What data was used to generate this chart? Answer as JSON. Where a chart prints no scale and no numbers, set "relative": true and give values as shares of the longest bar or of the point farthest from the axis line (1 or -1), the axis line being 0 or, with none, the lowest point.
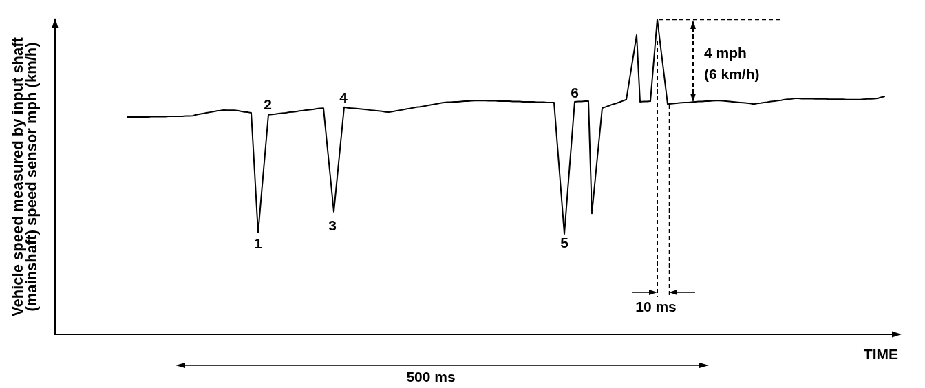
{
  "chart_data": {
    "type": "line",
    "relative": true,
    "color": "#000000",
    "marker": "none",
    "line_style": "solid",
    "xlabel": "TIME",
    "ylabel": "Vehicle speed measured by input shaft\n(mainshaft) speed sensor mph (km/h)",
    "annotations": [
      "1",
      "2",
      "3",
      "4",
      "5",
      "6",
      "4 mph\n(6 km/h)",
      "10 ms",
      "500 ms"
    ],
    "categories": [
      null,
      null,
      null,
      null,
      null,
      null,
      null,
      null,
      null,
      null,
      null,
      null,
      null,
      null,
      null,
      null,
      null,
      null,
      null,
      null,
      null,
      null,
      null,
      null,
      null,
      null,
      null,
      null,
      null,
      null,
      null,
      null,
      null,
      null,
      null,
      null,
      null,
      null,
      null,
      null,
      null,
      null,
      null,
      null,
      null,
      null,
      null,
      null,
      null,
      null,
      null,
      null,
      null,
      null,
      null,
      null,
      null,
      null,
      null,
      null,
      null,
      null,
      null,
      null,
      null,
      null,
      null,
      null,
      null,
      null,
      null,
      null,
      null,
      null,
      null,
      null,
      null,
      null,
      null,
      null,
      null,
      null,
      null,
      null,
      null,
      null,
      null,
      null,
      null,
      null,
      null,
      null,
      null,
      null,
      null,
      null,
      null,
      null,
      null,
      null,
      null,
      null,
      null,
      null,
      null,
      null,
      null,
      null,
      null,
      null,
      null,
      null,
      null,
      null,
      null,
      null,
      null,
      null,
      null,
      null,
      null,
      null,
      null,
      null,
      null,
      null,
      null,
      null,
      null,
      null,
      null,
      null,
      null,
      null,
      null,
      null,
      null,
      null,
      null,
      null,
      null,
      null,
      null,
      null,
      null,
      null,
      null,
      null,
      null,
      null,
      null,
      null,
      null,
      null,
      null,
      null,
      null,
      null,
      null,
      null,
      null,
      null,
      null,
      null,
      null,
      null,
      null,
      null,
      null,
      null,
      null,
      null,
      null,
      null,
      null,
      null,
      null,
      null,
      null,
      null,
      null,
      null,
      null,
      null,
      null,
      null,
      null,
      null,
      null,
      null,
      null,
      null,
      null,
      null,
      null,
      null,
      null,
      null,
      null,
      null,
      null,
      null,
      null,
      null,
      null,
      null,
      null,
      null,
      null,
      null,
      null,
      null,
      null,
      null,
      null,
      null,
      null,
      null,
      null,
      null,
      null,
      null,
      null,
      null,
      null,
      null,
      null,
      null,
      null,
      null,
      null,
      null,
      null,
      null,
      null,
      null,
      null,
      null,
      null,
      null,
      null,
      null,
      null,
      null,
      null,
      null
    ],
    "values": [
      null,
      null,
      null,
      null,
      null,
      null,
      null,
      null,
      null,
      null,
      null,
      null,
      null,
      null,
      null,
      null,
      null,
      null,
      null,
      null,
      null,
      0.69,
      0.69,
      0.69,
      0.69,
      0.69,
      0.69,
      0.69,
      0.691,
      0.691,
      0.691,
      0.691,
      0.691,
      0.692,
      0.692,
      0.692,
      0.692,
      0.692,
      0.693,
      0.693,
      0.694,
      0.697,
      0.699,
      0.701,
      0.703,
      0.705,
      0.707,
      0.709,
      0.71,
      0.712,
      0.711,
      0.711,
      0.711,
      0.71,
      0.708,
      0.706,
      0.705,
      0.703,
      0.513,
      0.323,
      0.448,
      0.572,
      0.697,
      0.698,
      0.699,
      0.701,
      0.702,
      0.703,
      0.705,
      0.706,
      0.707,
      0.709,
      0.71,
      0.712,
      0.713,
      0.714,
      0.716,
      0.717,
      0.718,
      0.608,
      0.499,
      0.389,
      0.499,
      0.61,
      0.721,
      0.719,
      0.718,
      0.717,
      0.716,
      0.715,
      0.714,
      0.713,
      0.711,
      0.71,
      0.709,
      0.708,
      0.706,
      0.705,
      0.707,
      0.709,
      0.711,
      0.713,
      0.715,
      0.717,
      0.719,
      0.721,
      0.722,
      0.724,
      0.726,
      0.728,
      0.73,
      0.732,
      0.734,
      0.736,
      0.737,
      0.737,
      0.738,
      0.738,
      0.739,
      0.74,
      0.74,
      0.741,
      0.742,
      0.742,
      0.742,
      0.742,
      0.741,
      0.741,
      0.741,
      0.74,
      0.74,
      0.74,
      0.74,
      0.739,
      0.739,
      0.739,
      0.738,
      0.738,
      0.738,
      0.738,
      0.737,
      0.737,
      0.737,
      0.736,
      0.736,
      0.736,
      0.597,
      0.458,
      0.319,
      0.459,
      0.598,
      0.738,
      0.739,
      0.739,
      0.74,
      0.74,
      0.384,
      0.496,
      0.607,
      0.718,
      0.722,
      0.726,
      0.73,
      0.733,
      0.737,
      0.741,
      0.745,
      0.813,
      0.881,
      0.95,
      0.738,
      0.739,
      0.739,
      0.74,
      0.87,
      1,
      0.91,
      0.821,
      0.731,
      0.732,
      0.733,
      0.734,
      0.735,
      0.736,
      0.736,
      0.737,
      0.738,
      0.739,
      0.739,
      0.74,
      0.74,
      0.741,
      0.742,
      0.742,
      0.741,
      0.74,
      0.739,
      0.738,
      0.737,
      0.736,
      0.735,
      0.734,
      0.733,
      0.731,
      0.733,
      0.734,
      0.736,
      0.737,
      0.739,
      0.74,
      0.742,
      0.743,
      0.745,
      0.746,
      0.747,
      0.749,
      0.749,
      0.748,
      0.748,
      0.748,
      0.748,
      0.747,
      0.747,
      0.747,
      0.747,
      0.746,
      0.746,
      0.746,
      0.746,
      0.746,
      0.745,
      0.745,
      0.745,
      0.745,
      0.745,
      0.746,
      0.747,
      0.747,
      0.748,
      0.749,
      0.752,
      0.755,
      null,
      null,
      null,
      null
    ]
  }
}
